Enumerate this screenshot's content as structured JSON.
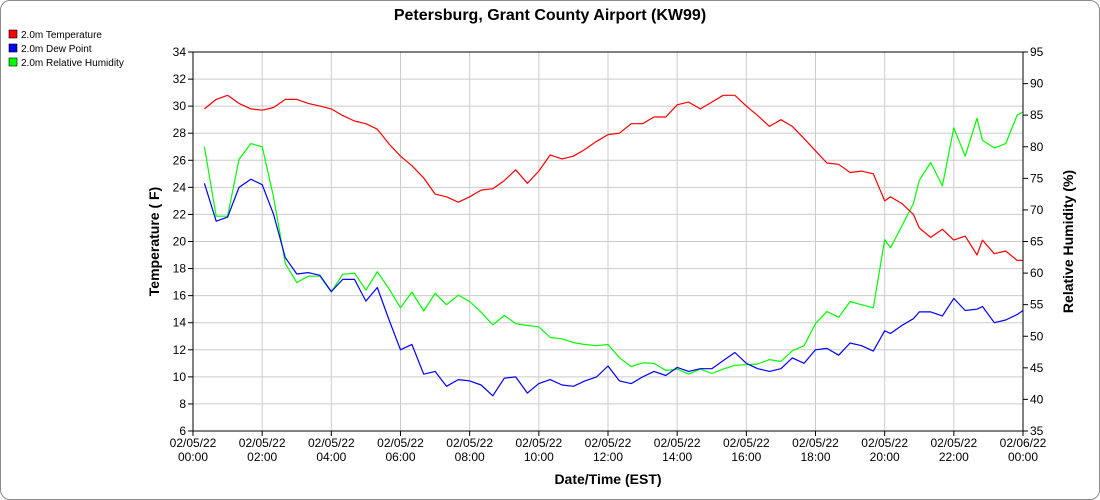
{
  "chart_data": {
    "type": "line",
    "title": "Petersburg, Grant County Airport (KW99)",
    "xlabel": "Date/Time (EST)",
    "ylabel_left": "Temperature ( F)",
    "ylabel_right": "Relative Humidity (%)",
    "ylim_left": [
      6,
      34
    ],
    "ylim_right": [
      35,
      95
    ],
    "y_ticks_left": [
      "6",
      "8",
      "10",
      "12",
      "14",
      "16",
      "18",
      "20",
      "22",
      "24",
      "26",
      "28",
      "30",
      "32",
      "34"
    ],
    "y_ticks_right": [
      "35",
      "40",
      "45",
      "50",
      "55",
      "60",
      "65",
      "70",
      "75",
      "80",
      "85",
      "90",
      "95"
    ],
    "x_range_hours": [
      0,
      24
    ],
    "x_ticks": [
      {
        "date": "02/05/22",
        "time": "00:00"
      },
      {
        "date": "02/05/22",
        "time": "02:00"
      },
      {
        "date": "02/05/22",
        "time": "04:00"
      },
      {
        "date": "02/05/22",
        "time": "06:00"
      },
      {
        "date": "02/05/22",
        "time": "08:00"
      },
      {
        "date": "02/05/22",
        "time": "10:00"
      },
      {
        "date": "02/05/22",
        "time": "12:00"
      },
      {
        "date": "02/05/22",
        "time": "14:00"
      },
      {
        "date": "02/05/22",
        "time": "16:00"
      },
      {
        "date": "02/05/22",
        "time": "18:00"
      },
      {
        "date": "02/05/22",
        "time": "20:00"
      },
      {
        "date": "02/05/22",
        "time": "22:00"
      },
      {
        "date": "02/06/22",
        "time": "00:00"
      }
    ],
    "grid": true,
    "legend_placement": "top-left",
    "series": [
      {
        "name": "2.0m Temperature",
        "color": "#ff0000",
        "axis": "left",
        "points": [
          [
            0.33,
            29.8
          ],
          [
            0.67,
            30.5
          ],
          [
            1.0,
            30.8
          ],
          [
            1.33,
            30.2
          ],
          [
            1.67,
            29.8
          ],
          [
            2.0,
            29.7
          ],
          [
            2.33,
            29.9
          ],
          [
            2.67,
            30.5
          ],
          [
            3.0,
            30.5
          ],
          [
            3.33,
            30.2
          ],
          [
            3.67,
            30.0
          ],
          [
            4.0,
            29.8
          ],
          [
            4.33,
            29.3
          ],
          [
            4.67,
            28.9
          ],
          [
            5.0,
            28.7
          ],
          [
            5.33,
            28.3
          ],
          [
            5.67,
            27.2
          ],
          [
            6.0,
            26.3
          ],
          [
            6.33,
            25.6
          ],
          [
            6.67,
            24.7
          ],
          [
            7.0,
            23.5
          ],
          [
            7.33,
            23.3
          ],
          [
            7.67,
            22.9
          ],
          [
            8.0,
            23.3
          ],
          [
            8.33,
            23.8
          ],
          [
            8.67,
            23.9
          ],
          [
            9.0,
            24.5
          ],
          [
            9.33,
            25.3
          ],
          [
            9.67,
            24.3
          ],
          [
            10.0,
            25.2
          ],
          [
            10.33,
            26.4
          ],
          [
            10.67,
            26.1
          ],
          [
            11.0,
            26.3
          ],
          [
            11.33,
            26.8
          ],
          [
            11.67,
            27.4
          ],
          [
            12.0,
            27.9
          ],
          [
            12.33,
            28.0
          ],
          [
            12.67,
            28.7
          ],
          [
            13.0,
            28.7
          ],
          [
            13.33,
            29.2
          ],
          [
            13.67,
            29.2
          ],
          [
            14.0,
            30.1
          ],
          [
            14.33,
            30.3
          ],
          [
            14.67,
            29.8
          ],
          [
            15.0,
            30.3
          ],
          [
            15.33,
            30.8
          ],
          [
            15.67,
            30.8
          ],
          [
            16.0,
            30.0
          ],
          [
            16.33,
            29.3
          ],
          [
            16.67,
            28.5
          ],
          [
            17.0,
            29.0
          ],
          [
            17.33,
            28.5
          ],
          [
            17.67,
            27.6
          ],
          [
            18.0,
            26.7
          ],
          [
            18.33,
            25.8
          ],
          [
            18.67,
            25.7
          ],
          [
            19.0,
            25.1
          ],
          [
            19.33,
            25.2
          ],
          [
            19.67,
            25.0
          ],
          [
            20.0,
            23.0
          ],
          [
            20.17,
            23.3
          ],
          [
            20.5,
            22.8
          ],
          [
            20.83,
            22.0
          ],
          [
            21.0,
            21.0
          ],
          [
            21.33,
            20.3
          ],
          [
            21.67,
            20.9
          ],
          [
            22.0,
            20.1
          ],
          [
            22.33,
            20.4
          ],
          [
            22.67,
            19.0
          ],
          [
            22.83,
            20.1
          ],
          [
            23.17,
            19.1
          ],
          [
            23.5,
            19.3
          ],
          [
            23.83,
            18.6
          ],
          [
            24.0,
            18.6
          ]
        ]
      },
      {
        "name": "2.0m Dew Point",
        "color": "#0000ff",
        "axis": "left",
        "points": [
          [
            0.33,
            24.3
          ],
          [
            0.67,
            21.5
          ],
          [
            1.0,
            21.8
          ],
          [
            1.33,
            24.0
          ],
          [
            1.67,
            24.6
          ],
          [
            2.0,
            24.2
          ],
          [
            2.33,
            22.0
          ],
          [
            2.67,
            18.8
          ],
          [
            3.0,
            17.6
          ],
          [
            3.33,
            17.7
          ],
          [
            3.67,
            17.5
          ],
          [
            4.0,
            16.3
          ],
          [
            4.33,
            17.2
          ],
          [
            4.67,
            17.2
          ],
          [
            5.0,
            15.6
          ],
          [
            5.33,
            16.6
          ],
          [
            5.67,
            14.2
          ],
          [
            6.0,
            12.0
          ],
          [
            6.33,
            12.4
          ],
          [
            6.67,
            10.2
          ],
          [
            7.0,
            10.4
          ],
          [
            7.33,
            9.3
          ],
          [
            7.67,
            9.8
          ],
          [
            8.0,
            9.7
          ],
          [
            8.33,
            9.4
          ],
          [
            8.67,
            8.6
          ],
          [
            9.0,
            9.9
          ],
          [
            9.33,
            10.0
          ],
          [
            9.67,
            8.8
          ],
          [
            10.0,
            9.5
          ],
          [
            10.33,
            9.8
          ],
          [
            10.67,
            9.4
          ],
          [
            11.0,
            9.3
          ],
          [
            11.33,
            9.7
          ],
          [
            11.67,
            10.0
          ],
          [
            12.0,
            10.8
          ],
          [
            12.33,
            9.7
          ],
          [
            12.67,
            9.5
          ],
          [
            13.0,
            10.0
          ],
          [
            13.33,
            10.4
          ],
          [
            13.67,
            10.1
          ],
          [
            14.0,
            10.7
          ],
          [
            14.33,
            10.4
          ],
          [
            14.67,
            10.6
          ],
          [
            15.0,
            10.6
          ],
          [
            15.33,
            11.2
          ],
          [
            15.67,
            11.8
          ],
          [
            16.0,
            11.0
          ],
          [
            16.33,
            10.6
          ],
          [
            16.67,
            10.4
          ],
          [
            17.0,
            10.6
          ],
          [
            17.33,
            11.4
          ],
          [
            17.67,
            11.0
          ],
          [
            18.0,
            12.0
          ],
          [
            18.33,
            12.1
          ],
          [
            18.67,
            11.6
          ],
          [
            19.0,
            12.5
          ],
          [
            19.33,
            12.3
          ],
          [
            19.67,
            11.9
          ],
          [
            20.0,
            13.4
          ],
          [
            20.17,
            13.2
          ],
          [
            20.5,
            13.8
          ],
          [
            20.83,
            14.3
          ],
          [
            21.0,
            14.8
          ],
          [
            21.33,
            14.8
          ],
          [
            21.67,
            14.5
          ],
          [
            22.0,
            15.8
          ],
          [
            22.33,
            14.9
          ],
          [
            22.67,
            15.0
          ],
          [
            22.83,
            15.2
          ],
          [
            23.17,
            14.0
          ],
          [
            23.5,
            14.2
          ],
          [
            23.83,
            14.6
          ],
          [
            24.0,
            14.9
          ]
        ]
      },
      {
        "name": "2.0m Relative Humidity",
        "color": "#00ff00",
        "axis": "right",
        "points": [
          [
            0.33,
            80.0
          ],
          [
            0.67,
            69.0
          ],
          [
            1.0,
            69.0
          ],
          [
            1.33,
            78.0
          ],
          [
            1.67,
            80.5
          ],
          [
            2.0,
            80.0
          ],
          [
            2.33,
            72.0
          ],
          [
            2.67,
            61.5
          ],
          [
            3.0,
            58.5
          ],
          [
            3.33,
            59.5
          ],
          [
            3.67,
            59.5
          ],
          [
            4.0,
            57.0
          ],
          [
            4.33,
            59.8
          ],
          [
            4.67,
            60.0
          ],
          [
            5.0,
            57.3
          ],
          [
            5.33,
            60.2
          ],
          [
            5.67,
            57.5
          ],
          [
            6.0,
            54.5
          ],
          [
            6.33,
            57.0
          ],
          [
            6.67,
            54.0
          ],
          [
            7.0,
            56.8
          ],
          [
            7.33,
            55.0
          ],
          [
            7.67,
            56.5
          ],
          [
            8.0,
            55.5
          ],
          [
            8.33,
            53.8
          ],
          [
            8.67,
            51.8
          ],
          [
            9.0,
            53.3
          ],
          [
            9.33,
            52.0
          ],
          [
            9.67,
            51.7
          ],
          [
            10.0,
            51.5
          ],
          [
            10.33,
            49.8
          ],
          [
            10.67,
            49.6
          ],
          [
            11.0,
            49.0
          ],
          [
            11.33,
            48.7
          ],
          [
            11.67,
            48.5
          ],
          [
            12.0,
            48.7
          ],
          [
            12.33,
            46.6
          ],
          [
            12.67,
            45.2
          ],
          [
            13.0,
            45.8
          ],
          [
            13.33,
            45.7
          ],
          [
            13.67,
            44.6
          ],
          [
            14.0,
            44.8
          ],
          [
            14.33,
            44.0
          ],
          [
            14.67,
            44.8
          ],
          [
            15.0,
            44.1
          ],
          [
            15.33,
            44.8
          ],
          [
            15.67,
            45.4
          ],
          [
            16.0,
            45.5
          ],
          [
            16.33,
            45.6
          ],
          [
            16.67,
            46.3
          ],
          [
            17.0,
            46.0
          ],
          [
            17.33,
            47.7
          ],
          [
            17.67,
            48.5
          ],
          [
            18.0,
            52.0
          ],
          [
            18.33,
            53.9
          ],
          [
            18.67,
            53.0
          ],
          [
            19.0,
            55.5
          ],
          [
            19.33,
            55.0
          ],
          [
            19.67,
            54.5
          ],
          [
            20.0,
            65.3
          ],
          [
            20.17,
            64.0
          ],
          [
            20.5,
            67.5
          ],
          [
            20.83,
            71.0
          ],
          [
            21.0,
            74.7
          ],
          [
            21.33,
            77.5
          ],
          [
            21.67,
            73.8
          ],
          [
            22.0,
            83.0
          ],
          [
            22.33,
            78.5
          ],
          [
            22.67,
            84.5
          ],
          [
            22.83,
            81.0
          ],
          [
            23.17,
            79.8
          ],
          [
            23.5,
            80.5
          ],
          [
            23.83,
            85.0
          ],
          [
            24.0,
            85.5
          ]
        ]
      }
    ]
  }
}
